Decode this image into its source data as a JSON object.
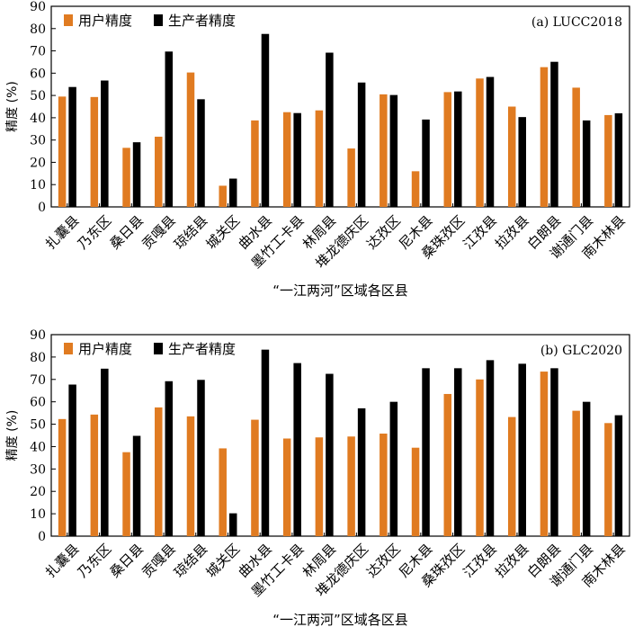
{
  "chart_data": [
    {
      "type": "bar",
      "panel_label": "(a) LUCC2018",
      "ylabel": "精度 (%)",
      "xlabel": "“一江两河”区域各区县",
      "ylim": [
        0,
        90
      ],
      "yticks": [
        0,
        10,
        20,
        30,
        40,
        50,
        60,
        70,
        80,
        90
      ],
      "grid": false,
      "legend_position": "top-left",
      "categories": [
        "扎囊县",
        "乃东区",
        "桑日县",
        "贡嘎县",
        "琼结县",
        "城关区",
        "曲水县",
        "墨竹工卡县",
        "林周县",
        "堆龙德庆区",
        "达孜区",
        "尼木县",
        "桑珠孜区",
        "江孜县",
        "拉孜县",
        "白朗县",
        "谢通门县",
        "南木林县"
      ],
      "series": [
        {
          "name": "用户精度",
          "color": "#e07b21",
          "values": [
            49.5,
            49.3,
            26.5,
            31.5,
            60.3,
            9.5,
            38.8,
            42.5,
            43.3,
            26.2,
            50.5,
            16.0,
            51.5,
            57.6,
            45.0,
            62.7,
            53.5,
            41.2
          ]
        },
        {
          "name": "生产者精度",
          "color": "#000000",
          "values": [
            53.8,
            56.7,
            29.0,
            69.7,
            48.3,
            12.7,
            77.6,
            42.1,
            69.2,
            55.8,
            50.2,
            39.2,
            51.8,
            58.3,
            40.3,
            65.1,
            38.8,
            42.0
          ]
        }
      ]
    },
    {
      "type": "bar",
      "panel_label": "(b) GLC2020",
      "ylabel": "精度 (%)",
      "xlabel": "“一江两河”区域各区县",
      "ylim": [
        0,
        90
      ],
      "yticks": [
        0,
        10,
        20,
        30,
        40,
        50,
        60,
        70,
        80,
        90
      ],
      "grid": false,
      "legend_position": "top-left",
      "categories": [
        "扎囊县",
        "乃东区",
        "桑日县",
        "贡嘎县",
        "琼结县",
        "城关区",
        "曲水县",
        "墨竹工卡县",
        "林周县",
        "堆龙德庆区",
        "达孜区",
        "尼木县",
        "桑珠孜区",
        "江孜县",
        "拉孜县",
        "白朗县",
        "谢通门县",
        "南木林县"
      ],
      "series": [
        {
          "name": "用户精度",
          "color": "#e07b21",
          "values": [
            52.3,
            54.3,
            37.5,
            57.5,
            53.5,
            39.2,
            52.0,
            43.6,
            44.1,
            44.5,
            45.8,
            39.5,
            63.5,
            70.0,
            53.2,
            73.5,
            56.0,
            50.5
          ]
        },
        {
          "name": "生产者精度",
          "color": "#000000",
          "values": [
            67.7,
            74.8,
            44.8,
            69.2,
            69.8,
            10.2,
            83.3,
            77.3,
            72.5,
            57.1,
            60.0,
            75.0,
            75.0,
            78.6,
            77.0,
            75.0,
            60.0,
            54.0
          ]
        }
      ]
    }
  ]
}
